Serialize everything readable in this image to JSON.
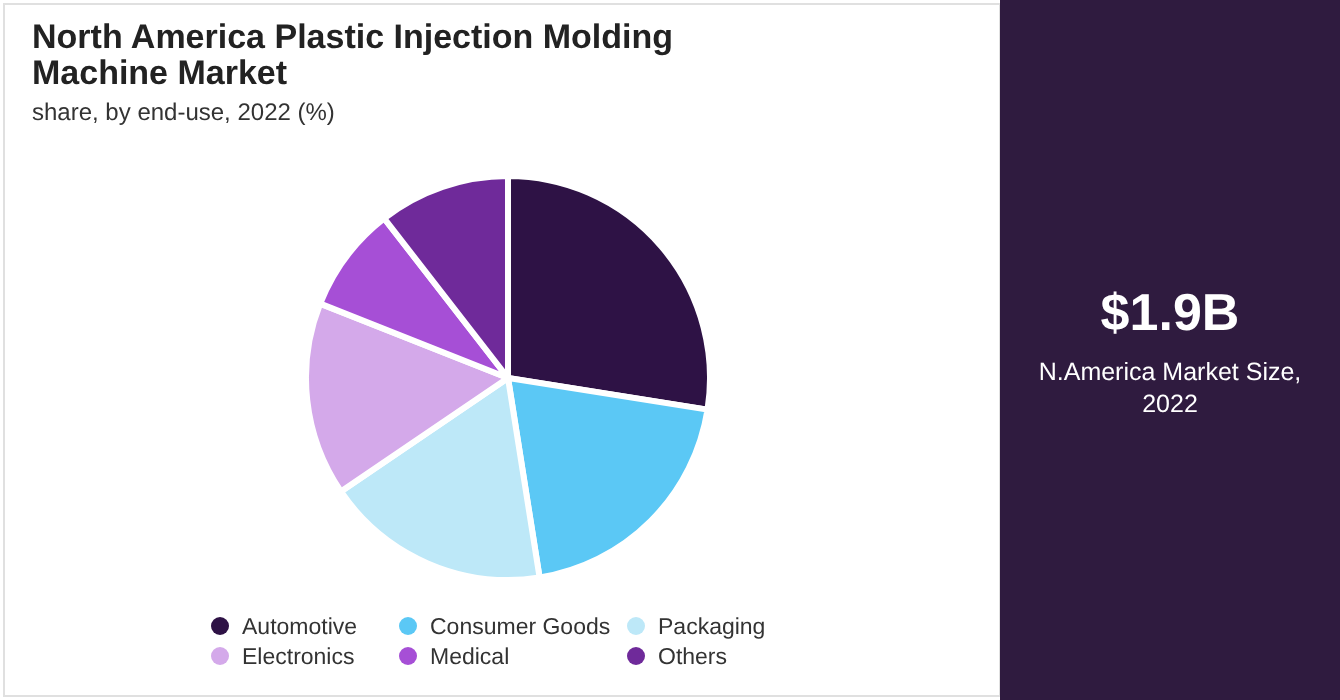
{
  "chart_data": {
    "type": "pie",
    "title": "North America Plastic Injection Molding Machine Market",
    "subtitle": "share, by end-use, 2022 (%)",
    "categories": [
      "Automotive",
      "Consumer  Goods",
      "Packaging",
      "Electronics",
      "Medical",
      "Others"
    ],
    "values": [
      27.5,
      20,
      18,
      15.5,
      8.5,
      10.5
    ],
    "colors": [
      "#2e1245",
      "#5bc8f5",
      "#bde8f8",
      "#d4a9ea",
      "#a64fd6",
      "#6f2a9a"
    ],
    "legend": "bottom",
    "annotations": [
      "$1.9B",
      "N.America Market Size, 2022"
    ]
  }
}
